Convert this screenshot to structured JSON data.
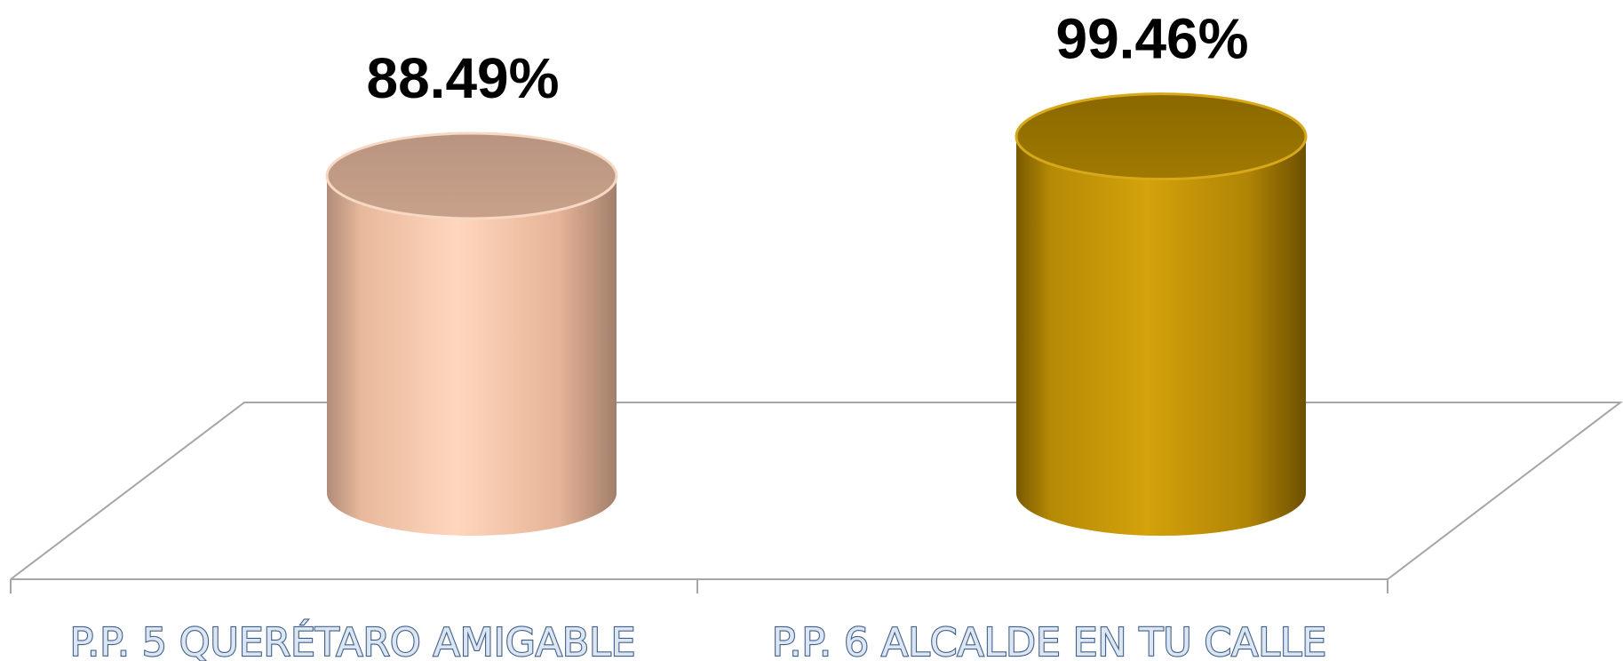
{
  "chart_data": {
    "type": "bar",
    "style": "3d-cylinder",
    "title": "",
    "xlabel": "",
    "ylabel": "",
    "ylim": [
      0,
      100
    ],
    "grid": false,
    "legend": "none",
    "categories": [
      "P.P. 5 QUERÉTARO AMIGABLE",
      "P.P. 6 ALCALDE EN TU CALLE"
    ],
    "values": [
      88.49,
      99.46
    ],
    "data_labels": [
      "88.49%",
      "99.46%"
    ],
    "colors": [
      "#f5c4a7",
      "#c89a06"
    ]
  }
}
